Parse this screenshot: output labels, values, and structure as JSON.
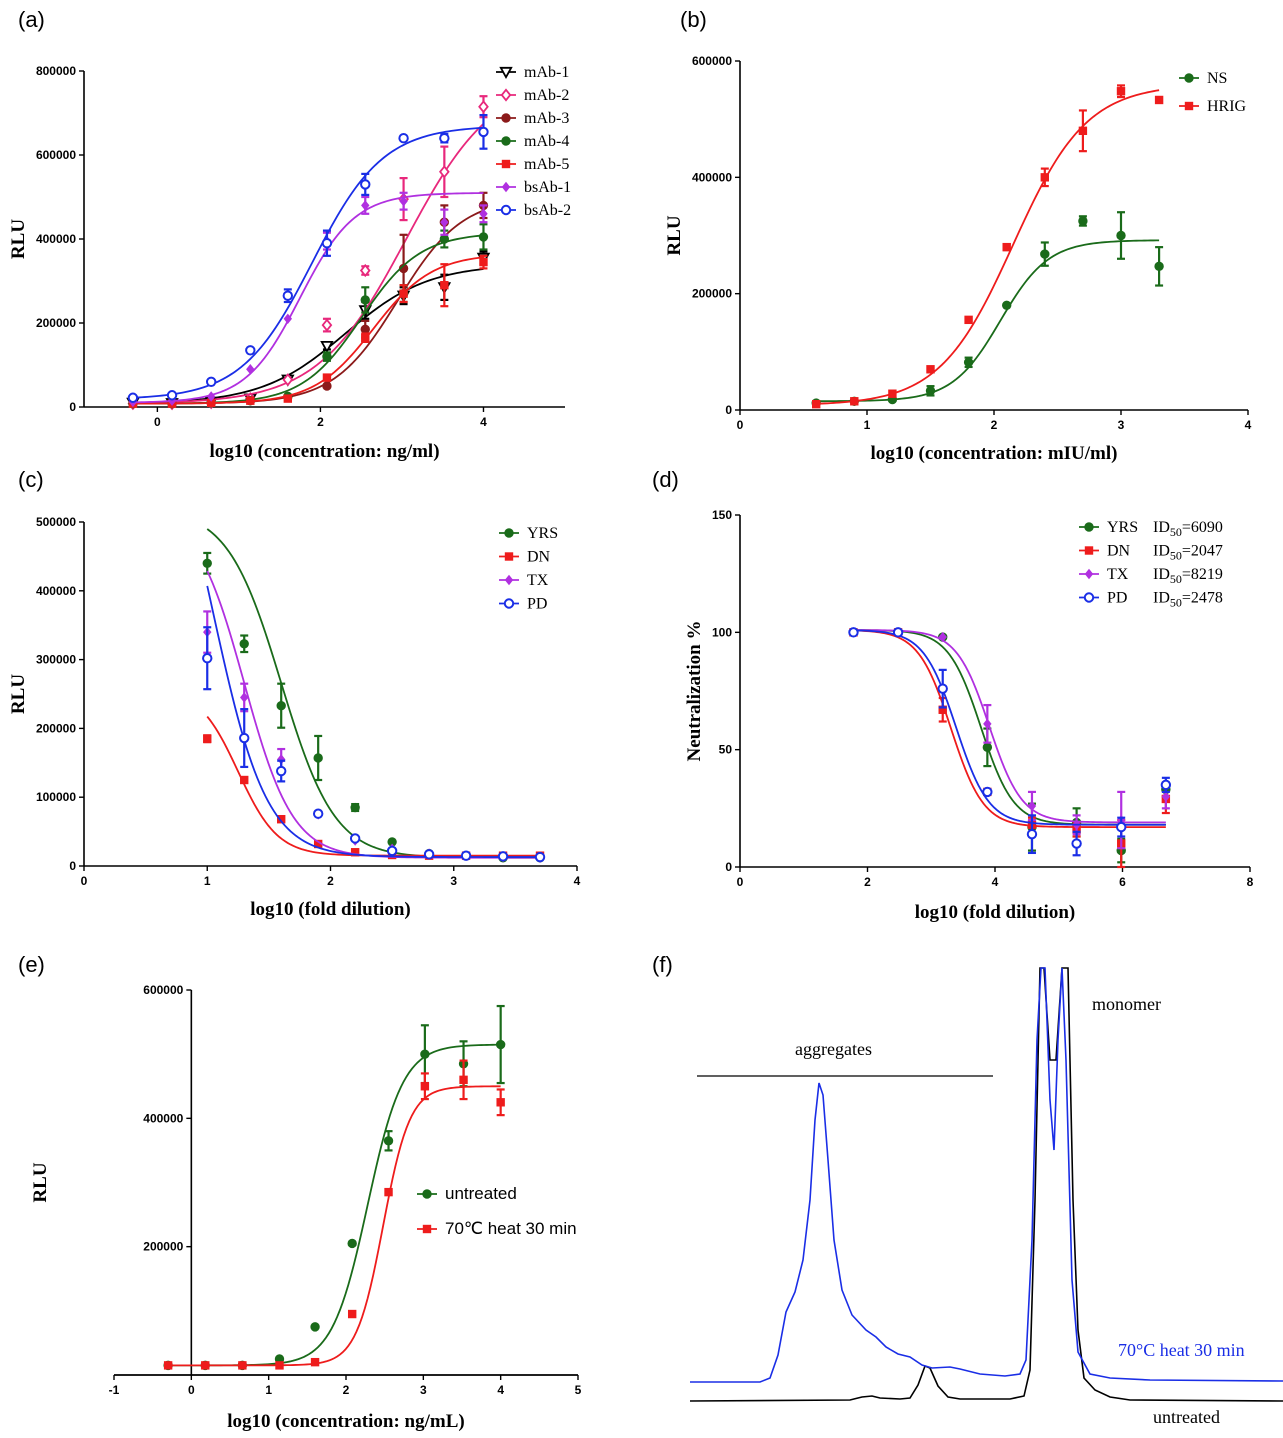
{
  "colors": {
    "black": "#000000",
    "pink": "#e8287c",
    "darkred": "#8b1a1a",
    "green": "#1a6b1a",
    "red": "#ee1c1c",
    "purple": "#b030e0",
    "blue": "#1a2ee6"
  },
  "chart_data": [
    {
      "panel": "(a)",
      "type": "line",
      "xlabel": "log10 (concentration: ng/ml)",
      "ylabel": "RLU",
      "xlim": [
        -0.9,
        5.0
      ],
      "ylim": [
        0,
        800000
      ],
      "xticks": [
        0,
        2,
        4
      ],
      "yticks": [
        0,
        200000,
        400000,
        600000,
        800000
      ],
      "legend_position": "top-right",
      "series": [
        {
          "name": "mAb-1",
          "color": "#000000",
          "marker": "triangle-down-open",
          "x": [
            -0.3,
            0.18,
            0.66,
            1.14,
            1.6,
            2.08,
            2.55,
            3.02,
            3.52,
            4.0
          ],
          "y": [
            10000,
            9000,
            12000,
            20000,
            65000,
            145000,
            230000,
            265000,
            285000,
            355000
          ],
          "err": [
            0,
            0,
            0,
            0,
            0,
            8000,
            20000,
            20000,
            30000,
            15000
          ],
          "fit": {
            "bottom": 8000,
            "top": 340000,
            "logec50": 2.3,
            "hill": 0.85
          }
        },
        {
          "name": "mAb-2",
          "color": "#e8287c",
          "marker": "diamond-open",
          "x": [
            -0.3,
            0.18,
            0.66,
            1.14,
            1.6,
            2.08,
            2.55,
            3.02,
            3.52,
            4.0
          ],
          "y": [
            8000,
            8000,
            10000,
            20000,
            65000,
            195000,
            325000,
            495000,
            560000,
            715000
          ],
          "err": [
            0,
            0,
            0,
            0,
            0,
            15000,
            10000,
            50000,
            60000,
            25000
          ],
          "fit": {
            "bottom": 8000,
            "top": 790000,
            "logec50": 3.05,
            "hill": 0.8
          }
        },
        {
          "name": "mAb-3",
          "color": "#8b1a1a",
          "marker": "circle-filled",
          "x": [
            -0.3,
            0.18,
            0.66,
            1.14,
            1.6,
            2.08,
            2.55,
            3.02,
            3.52,
            4.0
          ],
          "y": [
            8000,
            8000,
            10000,
            15000,
            25000,
            50000,
            185000,
            330000,
            440000,
            480000
          ],
          "err": [
            0,
            0,
            0,
            0,
            0,
            0,
            20000,
            80000,
            40000,
            30000
          ],
          "fit": {
            "bottom": 8000,
            "top": 500000,
            "logec50": 2.95,
            "hill": 1.1
          }
        },
        {
          "name": "mAb-4",
          "color": "#1a6b1a",
          "marker": "circle-filled",
          "x": [
            -0.3,
            0.18,
            0.66,
            1.14,
            1.6,
            2.08,
            2.55,
            3.02,
            3.52,
            4.0
          ],
          "y": [
            8000,
            8000,
            10000,
            15000,
            25000,
            120000,
            255000,
            270000,
            400000,
            405000
          ],
          "err": [
            0,
            0,
            0,
            0,
            0,
            10000,
            30000,
            20000,
            20000,
            30000
          ],
          "fit": {
            "bottom": 8000,
            "top": 415000,
            "logec50": 2.5,
            "hill": 1.2
          }
        },
        {
          "name": "mAb-5",
          "color": "#ee1c1c",
          "marker": "square-filled",
          "x": [
            -0.3,
            0.18,
            0.66,
            1.14,
            1.6,
            2.08,
            2.55,
            3.02,
            3.52,
            4.0
          ],
          "y": [
            8000,
            8000,
            10000,
            15000,
            20000,
            70000,
            165000,
            270000,
            290000,
            345000
          ],
          "err": [
            0,
            0,
            0,
            0,
            0,
            0,
            10000,
            20000,
            50000,
            15000
          ],
          "fit": {
            "bottom": 8000,
            "top": 365000,
            "logec50": 2.65,
            "hill": 1.2
          }
        },
        {
          "name": "bsAb-1",
          "color": "#b030e0",
          "marker": "diamond-filled",
          "x": [
            -0.3,
            0.18,
            0.66,
            1.14,
            1.6,
            2.08,
            2.55,
            3.02,
            3.52,
            4.0
          ],
          "y": [
            12000,
            15000,
            25000,
            90000,
            210000,
            395000,
            480000,
            490000,
            440000,
            460000
          ],
          "err": [
            0,
            0,
            0,
            0,
            0,
            20000,
            20000,
            20000,
            30000,
            20000
          ],
          "fit": {
            "bottom": 10000,
            "top": 510000,
            "logec50": 1.75,
            "hill": 1.3
          }
        },
        {
          "name": "bsAb-2",
          "color": "#1a2ee6",
          "marker": "circle-open",
          "x": [
            -0.3,
            0.18,
            0.66,
            1.14,
            1.6,
            2.08,
            2.55,
            3.02,
            3.52,
            4.0
          ],
          "y": [
            22000,
            28000,
            60000,
            135000,
            265000,
            390000,
            530000,
            640000,
            640000,
            655000
          ],
          "err": [
            0,
            0,
            0,
            0,
            15000,
            30000,
            25000,
            0,
            10000,
            40000
          ],
          "fit": {
            "bottom": 18000,
            "top": 670000,
            "logec50": 1.9,
            "hill": 1.0
          }
        }
      ]
    },
    {
      "panel": "(b)",
      "type": "line",
      "xlabel": "log10 (concentration: mIU/ml)",
      "ylabel": "RLU",
      "xlim": [
        0,
        4
      ],
      "ylim": [
        0,
        600000
      ],
      "xticks": [
        0,
        1,
        2,
        3,
        4
      ],
      "yticks": [
        0,
        200000,
        400000,
        600000
      ],
      "legend_position": "top-right",
      "series": [
        {
          "name": "NS",
          "color": "#1a6b1a",
          "marker": "circle-filled",
          "x": [
            0.6,
            0.9,
            1.2,
            1.5,
            1.8,
            2.1,
            2.4,
            2.7,
            3.0,
            3.3
          ],
          "y": [
            12000,
            15000,
            18000,
            33000,
            82000,
            180000,
            268000,
            325000,
            300000,
            247000
          ],
          "err": [
            0,
            0,
            0,
            8000,
            8000,
            0,
            20000,
            8000,
            40000,
            33000
          ],
          "fit": {
            "bottom": 15000,
            "top": 292000,
            "logec50": 2.05,
            "hill": 2.3
          }
        },
        {
          "name": "HRIG",
          "color": "#ee1c1c",
          "marker": "square-filled",
          "x": [
            0.6,
            0.9,
            1.2,
            1.5,
            1.8,
            2.1,
            2.4,
            2.7,
            3.0,
            3.3
          ],
          "y": [
            10000,
            15000,
            28000,
            70000,
            155000,
            280000,
            400000,
            480000,
            548000,
            533000
          ],
          "err": [
            0,
            0,
            0,
            0,
            0,
            5000,
            15000,
            35000,
            10000,
            0
          ],
          "fit": {
            "bottom": 8000,
            "top": 560000,
            "logec50": 2.15,
            "hill": 1.5
          }
        }
      ]
    },
    {
      "panel": "(c)",
      "type": "line",
      "xlabel": "log10 (fold dilution)",
      "ylabel": "RLU",
      "xlim": [
        0,
        4
      ],
      "ylim": [
        0,
        500000
      ],
      "xticks": [
        0,
        1,
        2,
        3,
        4
      ],
      "yticks": [
        0,
        100000,
        200000,
        300000,
        400000,
        500000
      ],
      "legend_position": "top-right",
      "series": [
        {
          "name": "YRS",
          "color": "#1a6b1a",
          "marker": "circle-filled",
          "x": [
            1.0,
            1.3,
            1.6,
            1.9,
            2.2,
            2.5,
            2.8,
            3.1,
            3.4,
            3.7
          ],
          "y": [
            440000,
            323000,
            233000,
            157000,
            85000,
            35000,
            18000,
            15000,
            12000,
            12000
          ],
          "err": [
            15000,
            12000,
            32000,
            32000,
            5000,
            0,
            0,
            0,
            0,
            0
          ],
          "fit": {
            "bottom": 12000,
            "top": 520000,
            "logec50": 1.6,
            "hill": 2.0,
            "decreasing": true
          }
        },
        {
          "name": "DN",
          "color": "#ee1c1c",
          "marker": "square-filled",
          "x": [
            1.0,
            1.3,
            1.6,
            1.9,
            2.2,
            2.5,
            2.8,
            3.1,
            3.4,
            3.7
          ],
          "y": [
            185000,
            125000,
            68000,
            32000,
            20000,
            16000,
            15000,
            15000,
            15000,
            15000
          ],
          "err": [
            5000,
            0,
            0,
            0,
            0,
            0,
            0,
            0,
            0,
            0
          ],
          "fit": {
            "bottom": 15000,
            "top": 260000,
            "logec50": 1.25,
            "hill": 2.7,
            "decreasing": true
          }
        },
        {
          "name": "TX",
          "color": "#b030e0",
          "marker": "diamond-filled",
          "x": [
            1.0,
            1.3,
            1.6,
            1.9,
            2.2,
            2.5,
            2.8,
            3.1,
            3.4,
            3.7
          ],
          "y": [
            340000,
            245000,
            155000,
            75000,
            37000,
            25000,
            18000,
            15000,
            13000,
            12000
          ],
          "err": [
            30000,
            20000,
            15000,
            0,
            0,
            0,
            0,
            0,
            0,
            0
          ],
          "fit": {
            "bottom": 12000,
            "top": 520000,
            "logec50": 1.3,
            "hill": 2.2,
            "decreasing": true
          }
        },
        {
          "name": "PD",
          "color": "#1a2ee6",
          "marker": "circle-open",
          "x": [
            1.0,
            1.3,
            1.6,
            1.9,
            2.2,
            2.5,
            2.8,
            3.1,
            3.4,
            3.7
          ],
          "y": [
            302000,
            186000,
            138000,
            76000,
            40000,
            22000,
            17000,
            15000,
            14000,
            13000
          ],
          "err": [
            45000,
            42000,
            15000,
            0,
            0,
            0,
            0,
            0,
            0,
            0
          ],
          "fit": {
            "bottom": 13000,
            "top": 720000,
            "logec50": 1.05,
            "hill": 2.0,
            "decreasing": true
          }
        }
      ]
    },
    {
      "panel": "(d)",
      "type": "line",
      "xlabel": "log10 (fold dilution)",
      "ylabel": "Neutralization %",
      "xlim": [
        0,
        8
      ],
      "ylim": [
        0,
        150
      ],
      "xticks": [
        0,
        2,
        4,
        6,
        8
      ],
      "yticks": [
        0,
        50,
        100,
        150
      ],
      "legend_position": "top-right",
      "series": [
        {
          "name": "YRS",
          "id50_label": "ID",
          "id50_sub": "50",
          "id50_value": "=6090",
          "color": "#1a6b1a",
          "marker": "circle-filled",
          "x": [
            1.78,
            2.48,
            3.18,
            3.88,
            4.58,
            5.28,
            5.98,
            6.68
          ],
          "y": [
            100,
            100,
            98,
            51,
            17,
            19,
            7,
            33
          ],
          "err": [
            0,
            0,
            0,
            8,
            10,
            6,
            5,
            3
          ],
          "fit": {
            "bottom": 18,
            "top": 101,
            "logec50": 3.78,
            "hill": 1.7,
            "decreasing": true
          }
        },
        {
          "name": "DN",
          "id50_label": "ID",
          "id50_sub": "50",
          "id50_value": "=2047",
          "color": "#ee1c1c",
          "marker": "square-filled",
          "x": [
            1.78,
            2.48,
            3.18,
            3.88,
            4.58,
            5.28,
            5.98,
            6.68
          ],
          "y": [
            100,
            100,
            67,
            32,
            18,
            16,
            10,
            29
          ],
          "err": [
            0,
            0,
            5,
            0,
            3,
            3,
            10,
            6
          ],
          "fit": {
            "bottom": 17,
            "top": 101,
            "logec50": 3.31,
            "hill": 1.7,
            "decreasing": true
          }
        },
        {
          "name": "TX",
          "id50_label": "ID",
          "id50_sub": "50",
          "id50_value": "=8219",
          "color": "#b030e0",
          "marker": "diamond-filled",
          "x": [
            1.78,
            2.48,
            3.18,
            3.88,
            4.58,
            5.28,
            5.98,
            6.68
          ],
          "y": [
            100,
            100,
            98,
            61,
            26,
            18,
            20,
            30
          ],
          "err": [
            0,
            0,
            0,
            8,
            6,
            4,
            12,
            5
          ],
          "fit": {
            "bottom": 19,
            "top": 101,
            "logec50": 3.91,
            "hill": 1.7,
            "decreasing": true
          }
        },
        {
          "name": "PD",
          "id50_label": "ID",
          "id50_sub": "50",
          "id50_value": "=2478",
          "color": "#1a2ee6",
          "marker": "circle-open",
          "x": [
            1.78,
            2.48,
            3.18,
            3.88,
            4.58,
            5.28,
            5.98,
            6.68
          ],
          "y": [
            100,
            100,
            76,
            32,
            14,
            10,
            17,
            35
          ],
          "err": [
            0,
            0,
            8,
            0,
            8,
            5,
            4,
            3
          ],
          "fit": {
            "bottom": 18,
            "top": 101,
            "logec50": 3.39,
            "hill": 1.7,
            "decreasing": true
          }
        }
      ]
    },
    {
      "panel": "(e)",
      "type": "line",
      "xlabel": "log10 (concentration: ng/mL)",
      "ylabel": "RLU",
      "xlim": [
        -1,
        5
      ],
      "ylim": [
        0,
        600000
      ],
      "xticks": [
        -1,
        0,
        1,
        2,
        3,
        4,
        5
      ],
      "yticks": [
        200000,
        400000,
        600000
      ],
      "legend_position": "center-right",
      "series": [
        {
          "name": "untreated",
          "color": "#1a6b1a",
          "marker": "circle-filled",
          "x": [
            -0.3,
            0.18,
            0.66,
            1.14,
            1.6,
            2.08,
            2.55,
            3.02,
            3.52,
            4.0
          ],
          "y": [
            15000,
            15000,
            15000,
            25000,
            75000,
            205000,
            365000,
            500000,
            485000,
            515000
          ],
          "err": [
            0,
            0,
            0,
            0,
            0,
            0,
            15000,
            45000,
            35000,
            60000
          ],
          "fit": {
            "bottom": 15000,
            "top": 515000,
            "logec50": 2.28,
            "hill": 1.9
          }
        },
        {
          "name": "70℃ heat 30 min",
          "color": "#ee1c1c",
          "marker": "square-filled",
          "x": [
            -0.3,
            0.18,
            0.66,
            1.14,
            1.6,
            2.08,
            2.55,
            3.02,
            3.52,
            4.0
          ],
          "y": [
            15000,
            15000,
            15000,
            15000,
            20000,
            95000,
            285000,
            450000,
            460000,
            425000
          ],
          "err": [
            0,
            0,
            0,
            0,
            0,
            0,
            0,
            20000,
            30000,
            20000
          ],
          "fit": {
            "bottom": 15000,
            "top": 450000,
            "logec50": 2.48,
            "hill": 2.5
          }
        }
      ]
    },
    {
      "panel": "(f)",
      "type": "line",
      "annotations": [
        "aggregates",
        "monomer"
      ],
      "series": [
        {
          "name": "70°C heat 30 min",
          "color": "#1a2ee6"
        },
        {
          "name": "untreated",
          "color": "#000000"
        }
      ]
    }
  ]
}
